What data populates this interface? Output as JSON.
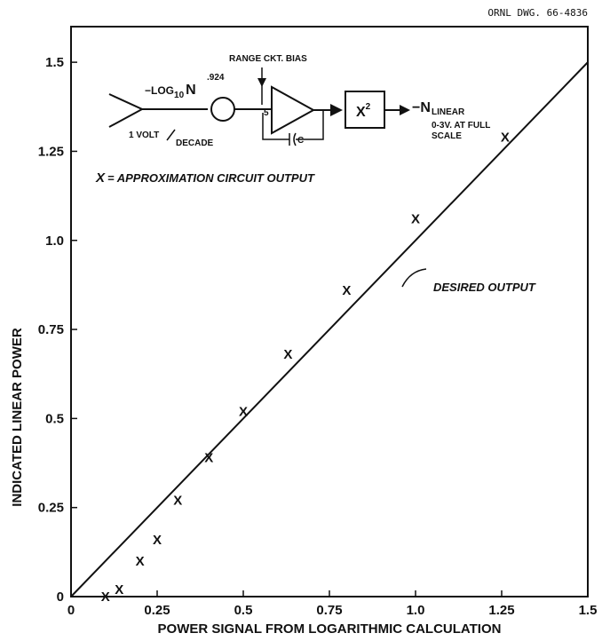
{
  "drawing_number": "ORNL DWG. 66-4836",
  "chart_data": {
    "type": "scatter",
    "xlabel": "POWER SIGNAL FROM LOGARITHMIC CALCULATION",
    "ylabel": "INDICATED LINEAR POWER",
    "xlim": [
      0,
      1.5
    ],
    "ylim": [
      0,
      1.6
    ],
    "x_ticks": [
      "0",
      "0.25",
      "0.5",
      "0.75",
      "1.0",
      "1.25",
      "1.5"
    ],
    "y_ticks": [
      "0",
      "0.25",
      "0.5",
      "0.75",
      "1.0",
      "1.25",
      "1.5"
    ],
    "grid": false,
    "series": [
      {
        "name": "APPROXIMATION CIRCUIT OUTPUT",
        "marker": "X",
        "x": [
          0.1,
          0.14,
          0.2,
          0.25,
          0.31,
          0.4,
          0.5,
          0.63,
          0.8,
          1.0,
          1.26
        ],
        "y": [
          0.0,
          0.02,
          0.1,
          0.16,
          0.27,
          0.39,
          0.52,
          0.68,
          0.86,
          1.06,
          1.29
        ]
      },
      {
        "name": "DESIRED OUTPUT",
        "style": "line",
        "x": [
          0,
          1.5
        ],
        "y": [
          0,
          1.5
        ]
      }
    ],
    "annotations": {
      "desired_output": "DESIRED OUTPUT",
      "legend_marker": "X",
      "legend_text": "= APPROXIMATION CIRCUIT OUTPUT"
    }
  },
  "circuit": {
    "range_bias": "RANGE CKT. BIAS",
    "log_base": "−LOG",
    "log_sub": "10",
    "log_n": "N",
    "exponent": ".924",
    "volt_per": "1 VOLT",
    "decade": "DECADE",
    "pin": "5",
    "cap": "C",
    "square_x": "X",
    "square_exp": "2",
    "out_n": "−N",
    "out_linear": "LINEAR",
    "out_range": "0-3V. AT FULL",
    "out_scale": "SCALE"
  }
}
